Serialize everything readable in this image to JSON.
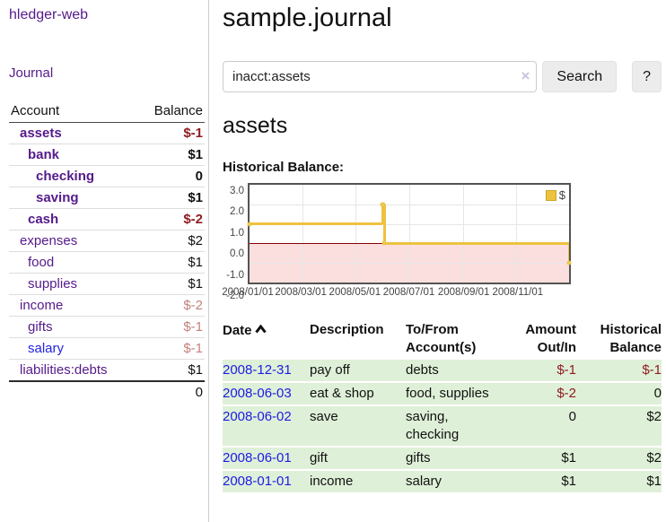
{
  "app": {
    "brand": "hledger-web",
    "nav": {
      "journal": "Journal"
    }
  },
  "sidebar": {
    "header": {
      "account": "Account",
      "balance": "Balance"
    },
    "accounts": [
      {
        "name": "assets",
        "balance": "$-1",
        "indent": 0,
        "bold": true,
        "neg": "strong"
      },
      {
        "name": "bank",
        "balance": "$1",
        "indent": 1,
        "bold": true
      },
      {
        "name": "checking",
        "balance": "0",
        "indent": 2,
        "bold": true
      },
      {
        "name": "saving",
        "balance": "$1",
        "indent": 2,
        "bold": true
      },
      {
        "name": "cash",
        "balance": "$-2",
        "indent": 1,
        "bold": true,
        "neg": "strong"
      },
      {
        "name": "expenses",
        "balance": "$2",
        "indent": 0
      },
      {
        "name": "food",
        "balance": "$1",
        "indent": 1
      },
      {
        "name": "supplies",
        "balance": "$1",
        "indent": 1
      },
      {
        "name": "income",
        "balance": "$-2",
        "indent": 0,
        "neg": "soft"
      },
      {
        "name": "gifts",
        "balance": "$-1",
        "indent": 1,
        "neg": "soft"
      },
      {
        "name": "salary",
        "balance": "$-1",
        "indent": 1,
        "neg": "soft",
        "blue": true
      },
      {
        "name": "liabilities:debts",
        "balance": "$1",
        "indent": 0
      }
    ],
    "total": "0"
  },
  "main": {
    "title": "sample.journal",
    "search": {
      "value": "inacct:assets",
      "clear_icon": "×",
      "search_button": "Search",
      "help_button": "?"
    },
    "account_heading": "assets",
    "chart_label": "Historical Balance:"
  },
  "chart_data": {
    "type": "line",
    "step": true,
    "title": "Historical Balance",
    "series": [
      {
        "name": "$",
        "color": "#edc240",
        "points": [
          [
            "2008-01-01",
            1
          ],
          [
            "2008-06-01",
            2
          ],
          [
            "2008-06-02",
            2
          ],
          [
            "2008-06-03",
            0
          ],
          [
            "2008-12-31",
            -1
          ]
        ]
      }
    ],
    "x_range": [
      "2008-01-01",
      "2008-12-31"
    ],
    "x_ticks": [
      "2008/01/01",
      "2008/03/01",
      "2008/05/01",
      "2008/07/01",
      "2008/09/01",
      "2008/11/01"
    ],
    "y_ticks": [
      3.0,
      2.0,
      1.0,
      0.0,
      -1.0,
      -2.0
    ],
    "ylim": [
      -2.0,
      3.0
    ],
    "legend": {
      "label": "$",
      "position": "top-right"
    },
    "grid": true,
    "negative_region_color": "#fbdfdf",
    "zero_line_color": "#8b0000"
  },
  "register": {
    "headers": {
      "date": "Date",
      "description": "Description",
      "accounts_line1": "To/From",
      "accounts_line2": "Account(s)",
      "amount_line1": "Amount",
      "amount_line2": "Out/In",
      "balance_line1": "Historical",
      "balance_line2": "Balance"
    },
    "rows": [
      {
        "date": "2008-12-31",
        "description": "pay off",
        "accounts": "debts",
        "amount": "$-1",
        "balance": "$-1",
        "amount_neg": true,
        "balance_neg": true
      },
      {
        "date": "2008-06-03",
        "description": "eat & shop",
        "accounts": "food, supplies",
        "amount": "$-2",
        "balance": "0",
        "amount_neg": true
      },
      {
        "date": "2008-06-02",
        "description": "save",
        "accounts": "saving, checking",
        "amount": "0",
        "balance": "$2"
      },
      {
        "date": "2008-06-01",
        "description": "gift",
        "accounts": "gifts",
        "amount": "$1",
        "balance": "$2"
      },
      {
        "date": "2008-01-01",
        "description": "income",
        "accounts": "salary",
        "amount": "$1",
        "balance": "$1"
      }
    ]
  },
  "colors": {
    "link_purple": "#551a8b",
    "link_blue": "#2323e0",
    "negative_strong": "#8f1d21",
    "negative_soft": "#c4807e",
    "row_green": "#dff0d8",
    "chart_line": "#edc240",
    "chart_negative_bg": "#fbdfdf",
    "chart_zero_line": "#8b0000"
  }
}
